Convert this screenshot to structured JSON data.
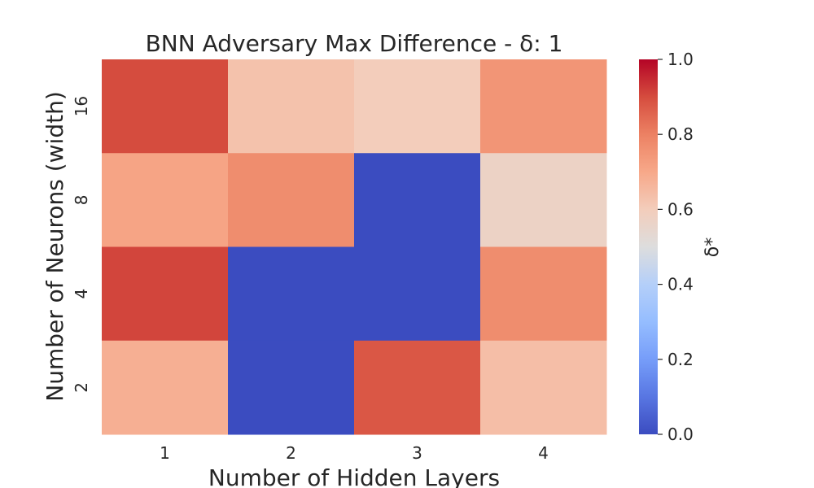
{
  "chart_data": {
    "type": "heatmap",
    "title": "BNN Adversary Max Difference - δ: 1",
    "xlabel": "Number of Hidden Layers",
    "ylabel": "Number of Neurons (width)",
    "x_categories": [
      "1",
      "2",
      "3",
      "4"
    ],
    "y_categories": [
      "16",
      "8",
      "4",
      "2"
    ],
    "values": [
      [
        0.9,
        0.63,
        0.6,
        0.75
      ],
      [
        0.71,
        0.77,
        0.0,
        0.57
      ],
      [
        0.91,
        0.0,
        0.0,
        0.77
      ],
      [
        0.68,
        0.0,
        0.88,
        0.64
      ]
    ],
    "vmin": 0.0,
    "vmax": 1.0,
    "colormap": "coolwarm",
    "colorbar": {
      "label": "δ*",
      "ticks": [
        "0.0",
        "0.2",
        "0.4",
        "0.6",
        "0.8",
        "1.0"
      ]
    }
  }
}
